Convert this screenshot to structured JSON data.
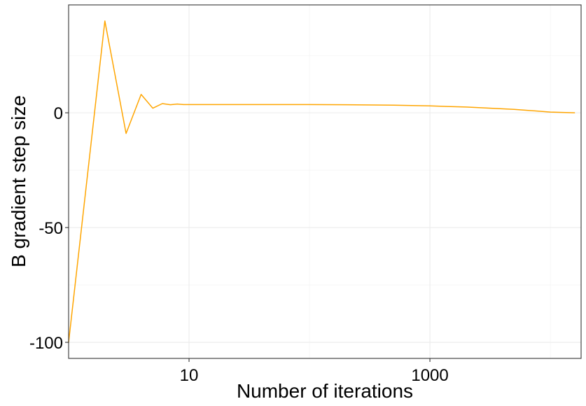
{
  "chart_data": {
    "type": "line",
    "xlabel": "Number of iterations",
    "ylabel": "B gradient step size",
    "x_scale": "log10",
    "xlim": [
      1.0,
      18000
    ],
    "ylim": [
      -107,
      47
    ],
    "x_ticks": [
      {
        "value": 10,
        "label": "10"
      },
      {
        "value": 1000,
        "label": "1000"
      }
    ],
    "y_ticks": [
      {
        "value": -100,
        "label": "-100"
      },
      {
        "value": -50,
        "label": "-50"
      },
      {
        "value": 0,
        "label": "0"
      }
    ],
    "grid": true,
    "series": [
      {
        "color": "#FFA500",
        "x": [
          1,
          2,
          3,
          4,
          5,
          6,
          7,
          8,
          9,
          10,
          20,
          50,
          100,
          200,
          500,
          1000,
          2000,
          5000,
          10000,
          16000
        ],
        "y": [
          -100,
          40,
          -9,
          8,
          2,
          4,
          3.5,
          3.8,
          3.6,
          3.6,
          3.6,
          3.6,
          3.6,
          3.5,
          3.3,
          3.0,
          2.5,
          1.5,
          0.3,
          0
        ]
      }
    ]
  }
}
